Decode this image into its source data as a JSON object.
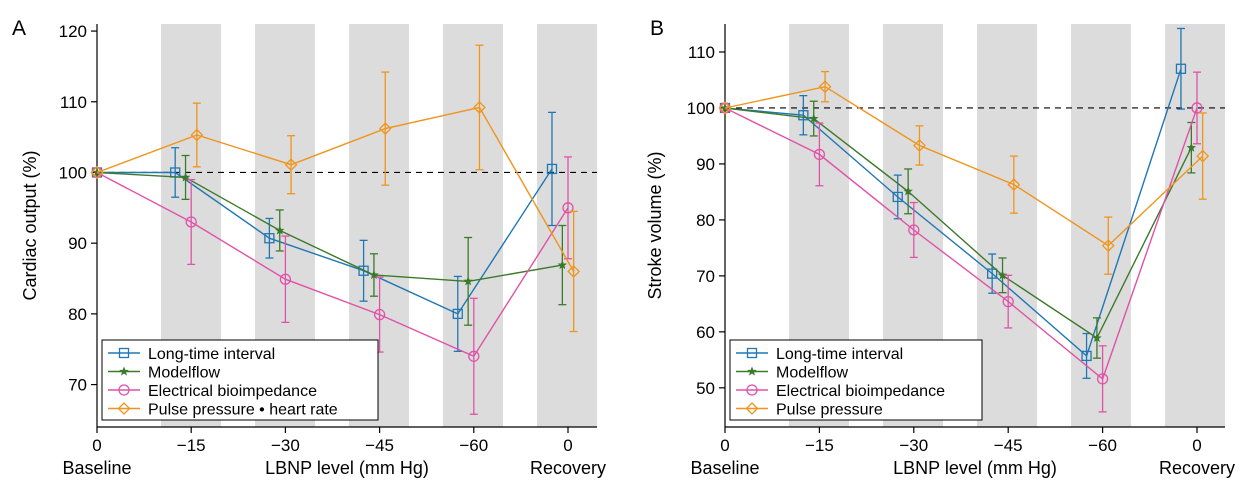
{
  "chart_data": [
    {
      "type": "line",
      "panel_label": "A",
      "ylabel": "Cardiac output (%)",
      "xlabel": "LBNP level (mm Hg)",
      "x_end_labels": [
        "Baseline",
        "Recovery"
      ],
      "x_ticks": [
        {
          "pos": 0,
          "label": "0"
        },
        {
          "pos": 1,
          "label": "−15"
        },
        {
          "pos": 2,
          "label": "−30"
        },
        {
          "pos": 3,
          "label": "−45"
        },
        {
          "pos": 4,
          "label": "−60"
        },
        {
          "pos": 5,
          "label": "0"
        }
      ],
      "y_ticks": [
        70,
        80,
        90,
        100,
        110,
        120
      ],
      "ylim": [
        64,
        121
      ],
      "reference_line": 100,
      "legend_position": "bottom-left",
      "series": [
        {
          "name": "Long-time interval",
          "color": "#1f77b4",
          "marker": "square",
          "points": [
            [
              0,
              100,
              null
            ],
            [
              0.83,
              100,
              3.5
            ],
            [
              1.83,
              90.7,
              2.8
            ],
            [
              2.83,
              86.1,
              4.3
            ],
            [
              3.83,
              80.0,
              5.3
            ],
            [
              4.83,
              100.5,
              8.0
            ]
          ]
        },
        {
          "name": "Modelflow",
          "color": "#3b7a2a",
          "marker": "star",
          "points": [
            [
              0,
              100,
              null
            ],
            [
              0.94,
              99.3,
              3.1
            ],
            [
              1.94,
              91.8,
              2.9
            ],
            [
              2.94,
              85.5,
              3.0
            ],
            [
              3.94,
              84.6,
              6.2
            ],
            [
              4.94,
              86.9,
              5.6
            ]
          ]
        },
        {
          "name": "Electrical bioimpedance",
          "color": "#e052a8",
          "marker": "circle",
          "points": [
            [
              0,
              100,
              null
            ],
            [
              1.0,
              93.0,
              6.0
            ],
            [
              2.0,
              84.9,
              6.1
            ],
            [
              3.0,
              79.9,
              5.3
            ],
            [
              4.0,
              74.0,
              8.2
            ],
            [
              5.0,
              95.0,
              7.2
            ]
          ]
        },
        {
          "name": "Pulse pressure • heart rate",
          "color": "#f0941c",
          "marker": "diamond",
          "points": [
            [
              0,
              100,
              null
            ],
            [
              1.06,
              105.3,
              4.5
            ],
            [
              2.06,
              101.1,
              4.1
            ],
            [
              3.06,
              106.2,
              8.0
            ],
            [
              4.06,
              109.2,
              8.8
            ],
            [
              5.06,
              86.0,
              8.5
            ]
          ]
        }
      ]
    },
    {
      "type": "line",
      "panel_label": "B",
      "ylabel": "Stroke volume (%)",
      "xlabel": "LBNP level (mm Hg)",
      "x_end_labels": [
        "Baseline",
        "Recovery"
      ],
      "x_ticks": [
        {
          "pos": 0,
          "label": "0"
        },
        {
          "pos": 1,
          "label": "−15"
        },
        {
          "pos": 2,
          "label": "−30"
        },
        {
          "pos": 3,
          "label": "−45"
        },
        {
          "pos": 4,
          "label": "−60"
        },
        {
          "pos": 5,
          "label": "0"
        }
      ],
      "y_ticks": [
        50,
        60,
        70,
        80,
        90,
        100,
        110
      ],
      "ylim": [
        43,
        115
      ],
      "reference_line": 100,
      "legend_position": "bottom-left",
      "series": [
        {
          "name": "Long-time interval",
          "color": "#1f77b4",
          "marker": "square",
          "points": [
            [
              0,
              100,
              null
            ],
            [
              0.83,
              98.7,
              3.5
            ],
            [
              1.83,
              84.1,
              3.9
            ],
            [
              2.83,
              70.4,
              3.5
            ],
            [
              3.83,
              55.7,
              4.0
            ],
            [
              4.83,
              107.0,
              7.2
            ]
          ]
        },
        {
          "name": "Modelflow",
          "color": "#3b7a2a",
          "marker": "star",
          "points": [
            [
              0,
              100,
              null
            ],
            [
              0.94,
              98.1,
              3.1
            ],
            [
              1.94,
              85.1,
              4.0
            ],
            [
              2.94,
              70.1,
              3.1
            ],
            [
              3.94,
              58.9,
              3.6
            ],
            [
              4.94,
              92.9,
              4.5
            ]
          ]
        },
        {
          "name": "Electrical bioimpedance",
          "color": "#e052a8",
          "marker": "circle",
          "points": [
            [
              0,
              100,
              null
            ],
            [
              1.0,
              91.7,
              5.6
            ],
            [
              2.0,
              78.2,
              4.9
            ],
            [
              3.0,
              65.4,
              4.7
            ],
            [
              4.0,
              51.6,
              5.9
            ],
            [
              5.0,
              100.0,
              6.4
            ]
          ]
        },
        {
          "name": "Pulse pressure",
          "color": "#f0941c",
          "marker": "diamond",
          "points": [
            [
              0,
              100,
              null
            ],
            [
              1.06,
              103.8,
              2.7
            ],
            [
              2.06,
              93.3,
              3.5
            ],
            [
              3.06,
              86.3,
              5.1
            ],
            [
              4.06,
              75.4,
              5.1
            ],
            [
              5.06,
              91.4,
              7.7
            ]
          ]
        }
      ]
    }
  ]
}
